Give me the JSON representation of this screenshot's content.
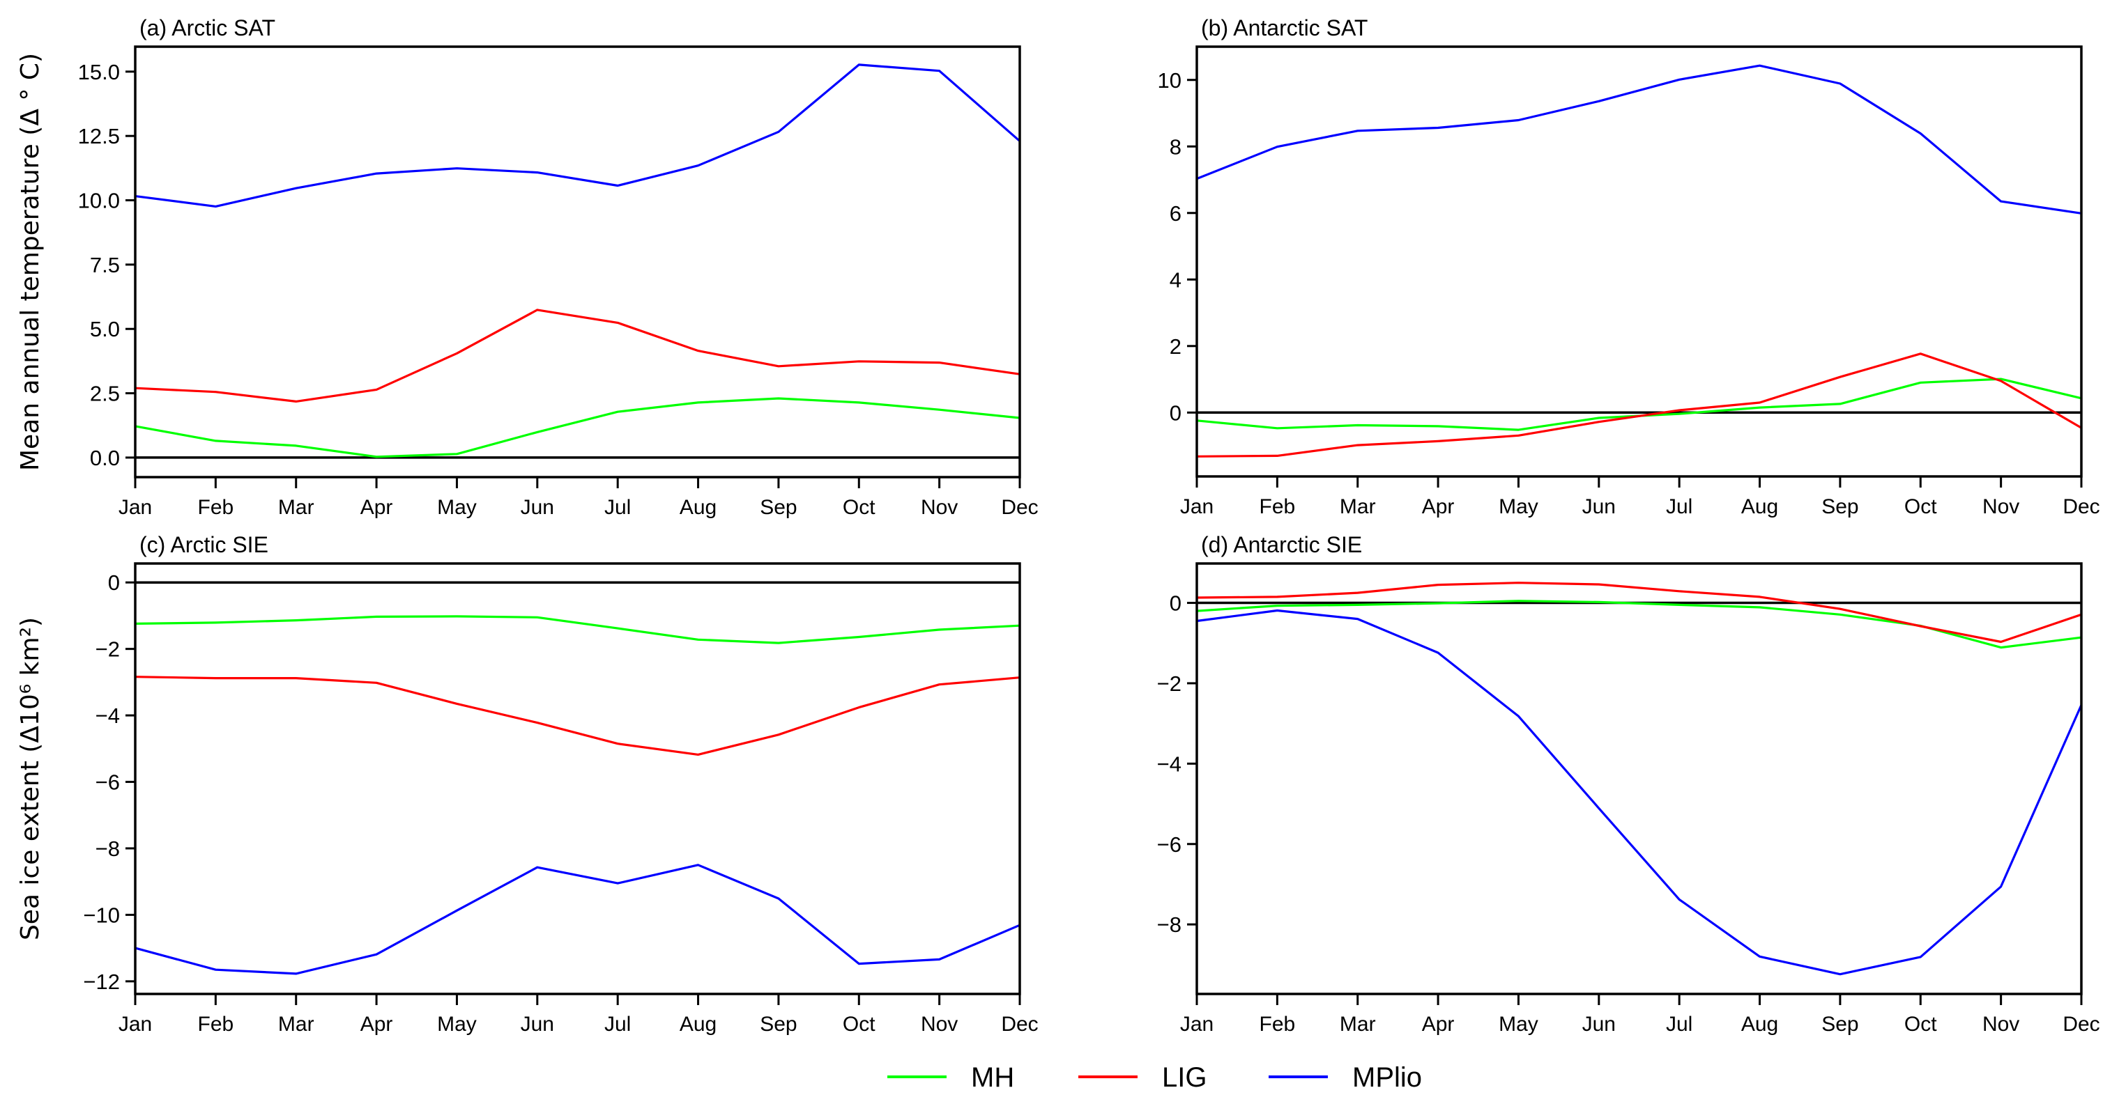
{
  "chart_data": {
    "type": "line",
    "layout": "2x2 grid",
    "legend": {
      "placement": "bottom-center",
      "entries": [
        {
          "name": "MH",
          "color": "#00ff00"
        },
        {
          "name": "LIG",
          "color": "#ff0000"
        },
        {
          "name": "MPlio",
          "color": "#0000ff"
        }
      ]
    },
    "categories": [
      "Jan",
      "Feb",
      "Mar",
      "Apr",
      "May",
      "Jun",
      "Jul",
      "Aug",
      "Sep",
      "Oct",
      "Nov",
      "Dec"
    ],
    "panels": [
      {
        "id": "a",
        "title": "(a) Arctic SAT",
        "ylabel": "Mean annual temperature (Δ ° C)",
        "xlabel": "",
        "ylim": [
          -0.76,
          15.97
        ],
        "yticks": [
          0.0,
          2.5,
          5.0,
          7.5,
          10.0,
          12.5,
          15.0
        ],
        "ytick_labels": [
          "0.0",
          "2.5",
          "5.0",
          "7.5",
          "10.0",
          "12.5",
          "15.0"
        ],
        "zero_line": true,
        "series": [
          {
            "name": "MH",
            "color": "#00ff00",
            "values": [
              1.22,
              0.65,
              0.46,
              0.03,
              0.14,
              0.99,
              1.78,
              2.14,
              2.3,
              2.14,
              1.86,
              1.54
            ]
          },
          {
            "name": "LIG",
            "color": "#ff0000",
            "values": [
              2.7,
              2.55,
              2.18,
              2.64,
              4.05,
              5.74,
              5.24,
              4.15,
              3.55,
              3.74,
              3.69,
              3.24
            ]
          },
          {
            "name": "MPlio",
            "color": "#0000ff",
            "values": [
              10.16,
              9.76,
              10.47,
              11.04,
              11.24,
              11.08,
              10.57,
              11.35,
              12.66,
              15.27,
              15.03,
              12.3
            ]
          }
        ]
      },
      {
        "id": "b",
        "title": "(b) Antarctic SAT",
        "ylabel": "",
        "xlabel": "",
        "ylim": [
          -1.92,
          11.0
        ],
        "yticks": [
          0,
          2,
          4,
          6,
          8,
          10
        ],
        "ytick_labels": [
          "0",
          "2",
          "4",
          "6",
          "8",
          "10"
        ],
        "zero_line": true,
        "series": [
          {
            "name": "MH",
            "color": "#00ff00",
            "values": [
              -0.24,
              -0.47,
              -0.38,
              -0.41,
              -0.52,
              -0.16,
              -0.04,
              0.15,
              0.26,
              0.9,
              1.01,
              0.43
            ]
          },
          {
            "name": "LIG",
            "color": "#ff0000",
            "values": [
              -1.32,
              -1.3,
              -0.98,
              -0.86,
              -0.69,
              -0.28,
              0.07,
              0.3,
              1.07,
              1.77,
              0.95,
              -0.46
            ]
          },
          {
            "name": "MPlio",
            "color": "#0000ff",
            "values": [
              7.03,
              7.99,
              8.47,
              8.56,
              8.79,
              9.36,
              10.01,
              10.43,
              9.89,
              8.39,
              6.35,
              5.99
            ]
          }
        ]
      },
      {
        "id": "c",
        "title": "(c) Arctic SIE",
        "ylabel": "Sea ice extent (Δ10⁶ km²)",
        "xlabel": "",
        "ylim": [
          -12.38,
          0.57
        ],
        "yticks": [
          0,
          -2,
          -4,
          -6,
          -8,
          -10,
          -12
        ],
        "ytick_labels": [
          "0",
          "−2",
          "−4",
          "−6",
          "−8",
          "−10",
          "−12"
        ],
        "zero_line": true,
        "series": [
          {
            "name": "MH",
            "color": "#00ff00",
            "values": [
              -1.24,
              -1.21,
              -1.14,
              -1.03,
              -1.02,
              -1.05,
              -1.38,
              -1.72,
              -1.82,
              -1.64,
              -1.42,
              -1.3
            ]
          },
          {
            "name": "LIG",
            "color": "#ff0000",
            "values": [
              -2.84,
              -2.88,
              -2.88,
              -3.02,
              -3.65,
              -4.22,
              -4.85,
              -5.18,
              -4.58,
              -3.76,
              -3.07,
              -2.86
            ]
          },
          {
            "name": "MPlio",
            "color": "#0000ff",
            "values": [
              -11.0,
              -11.65,
              -11.77,
              -11.19,
              -9.87,
              -8.57,
              -9.05,
              -8.5,
              -9.51,
              -11.47,
              -11.34,
              -10.31
            ]
          }
        ]
      },
      {
        "id": "d",
        "title": "(d) Antarctic SIE",
        "ylabel": "",
        "xlabel": "",
        "ylim": [
          -9.73,
          0.98
        ],
        "yticks": [
          0,
          -2,
          -4,
          -6,
          -8
        ],
        "ytick_labels": [
          "0",
          "−2",
          "−4",
          "−6",
          "−8"
        ],
        "zero_line": true,
        "series": [
          {
            "name": "MH",
            "color": "#00ff00",
            "values": [
              -0.2,
              -0.07,
              -0.05,
              -0.01,
              0.05,
              0.02,
              -0.05,
              -0.11,
              -0.29,
              -0.57,
              -1.11,
              -0.86
            ]
          },
          {
            "name": "LIG",
            "color": "#ff0000",
            "values": [
              0.13,
              0.15,
              0.25,
              0.45,
              0.5,
              0.46,
              0.29,
              0.15,
              -0.15,
              -0.58,
              -0.97,
              -0.29
            ]
          },
          {
            "name": "MPlio",
            "color": "#0000ff",
            "values": [
              -0.45,
              -0.19,
              -0.4,
              -1.24,
              -2.82,
              -5.11,
              -7.38,
              -8.8,
              -9.24,
              -8.81,
              -7.06,
              -2.54
            ]
          }
        ]
      }
    ]
  }
}
